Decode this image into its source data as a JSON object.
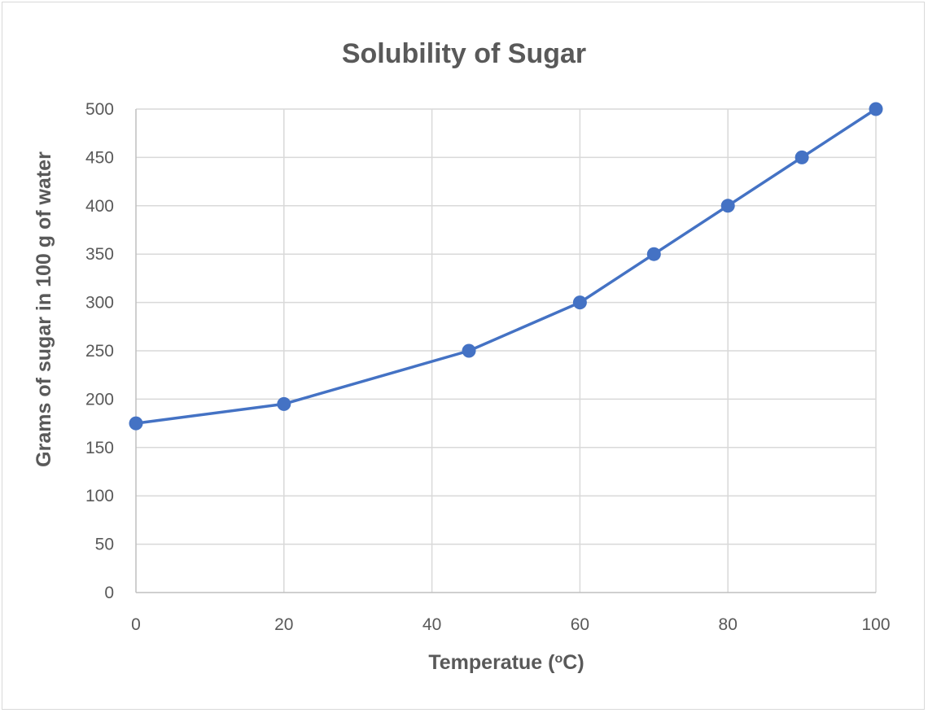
{
  "chart_data": {
    "type": "line",
    "title": "Solubility of Sugar",
    "xlabel": "Temperatue (",
    "xlabel_superscript": "o",
    "xlabel_suffix": "C)",
    "ylabel": "Grams of sugar in 100 g of water",
    "xlim": [
      0,
      100
    ],
    "ylim": [
      0,
      500
    ],
    "x_ticks": [
      0,
      20,
      40,
      60,
      80,
      100
    ],
    "y_ticks": [
      0,
      50,
      100,
      150,
      200,
      250,
      300,
      350,
      400,
      450,
      500
    ],
    "grid": true,
    "legend": "none",
    "series": [
      {
        "color": "#4472c4",
        "points": [
          {
            "x": 0,
            "y": 175
          },
          {
            "x": 20,
            "y": 195
          },
          {
            "x": 45,
            "y": 250
          },
          {
            "x": 60,
            "y": 300
          },
          {
            "x": 70,
            "y": 350
          },
          {
            "x": 80,
            "y": 400
          },
          {
            "x": 90,
            "y": 450
          },
          {
            "x": 100,
            "y": 500
          }
        ]
      }
    ]
  }
}
